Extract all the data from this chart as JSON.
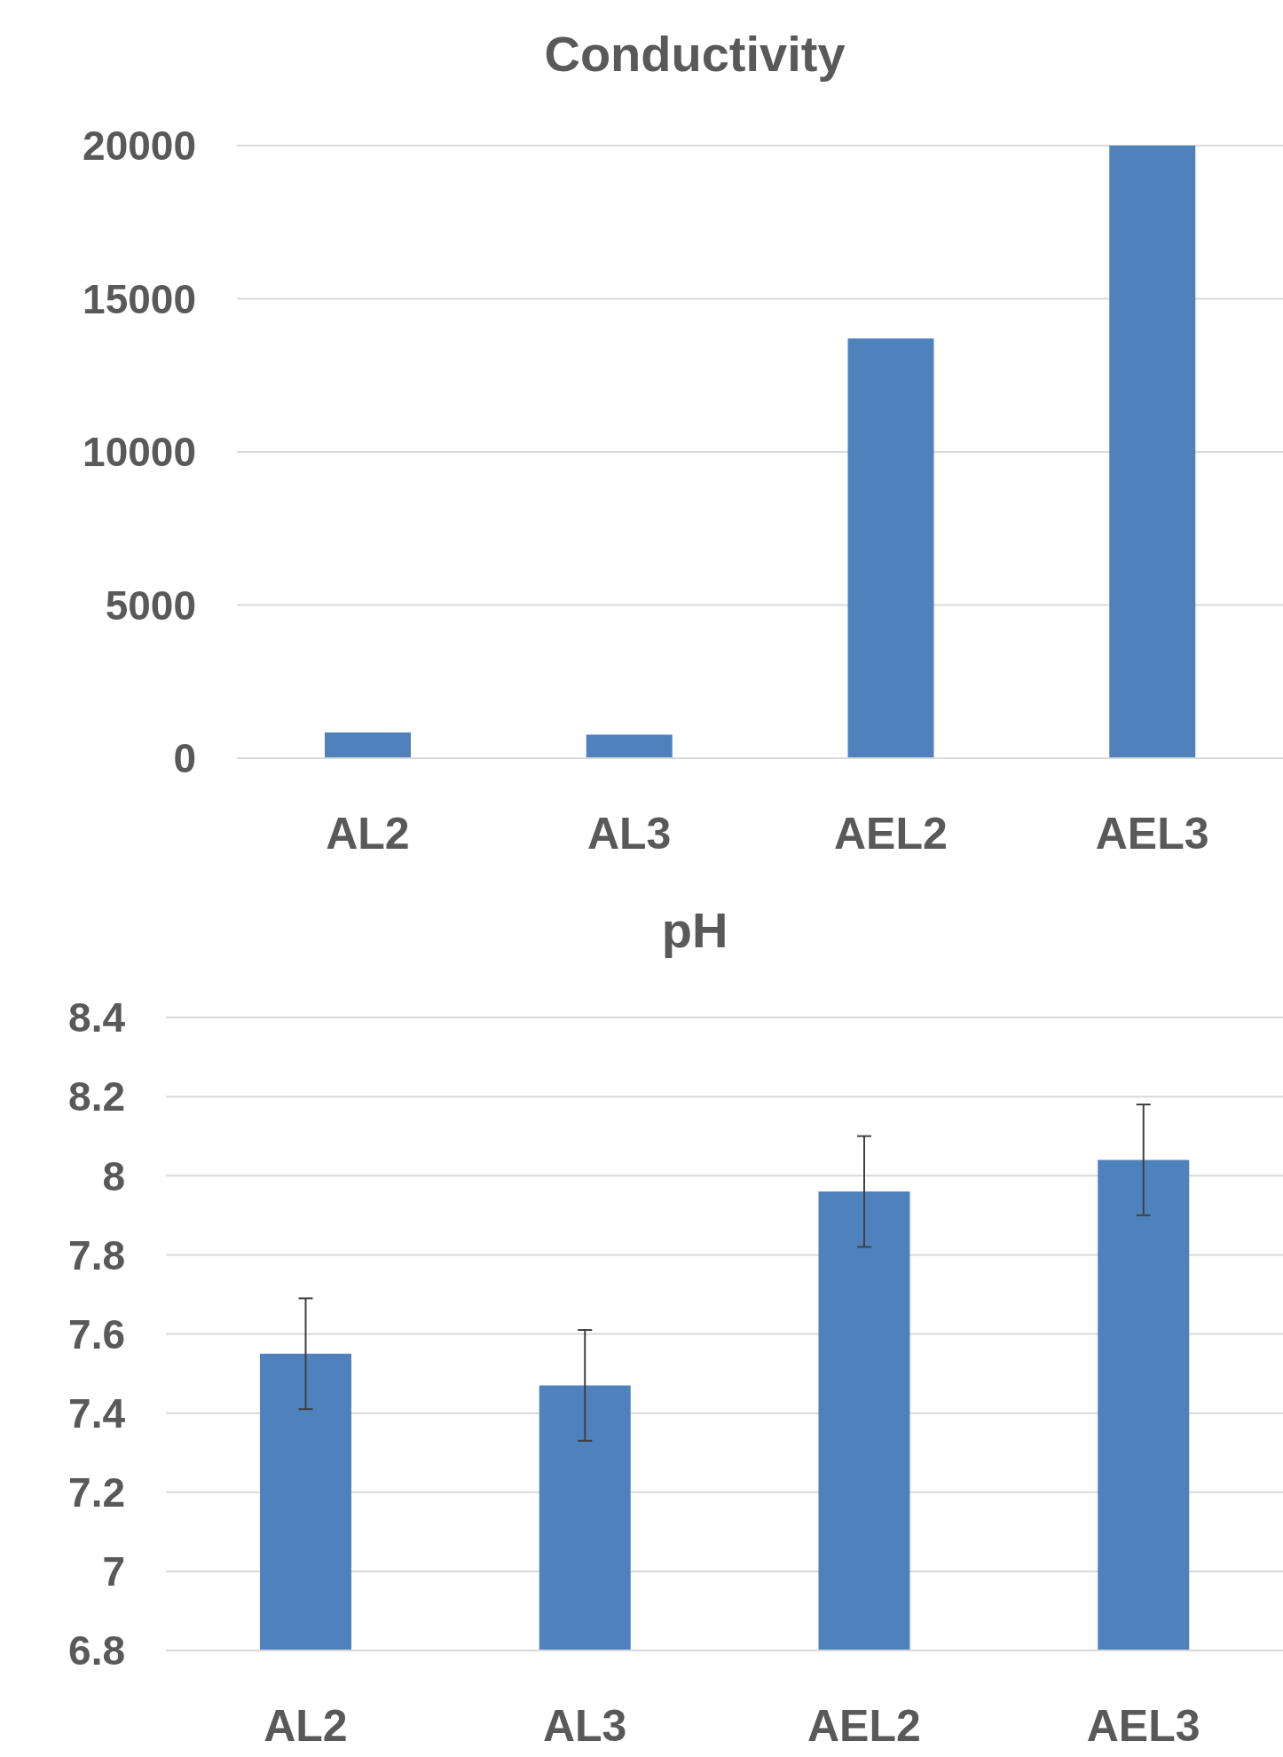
{
  "chart_data": [
    {
      "type": "bar",
      "title": "Conductivity",
      "categories": [
        "AL2",
        "AL3",
        "AEL2",
        "AEL3"
      ],
      "values": [
        840,
        770,
        13700,
        20000
      ],
      "color": "#4f81bd",
      "ylim": [
        0,
        20000
      ],
      "yticks": [
        0,
        5000,
        10000,
        15000,
        20000
      ],
      "grid": "y"
    },
    {
      "type": "bar",
      "title": "pH",
      "categories": [
        "AL2",
        "AL3",
        "AEL2",
        "AEL3"
      ],
      "values": [
        7.55,
        7.47,
        7.96,
        8.04
      ],
      "errors": [
        0.14,
        0.14,
        0.14,
        0.14
      ],
      "color": "#4f81bd",
      "ylim": [
        6.8,
        8.4
      ],
      "yticks": [
        6.8,
        7,
        7.2,
        7.4,
        7.6,
        7.8,
        8,
        8.2,
        8.4
      ],
      "grid": "y"
    }
  ]
}
